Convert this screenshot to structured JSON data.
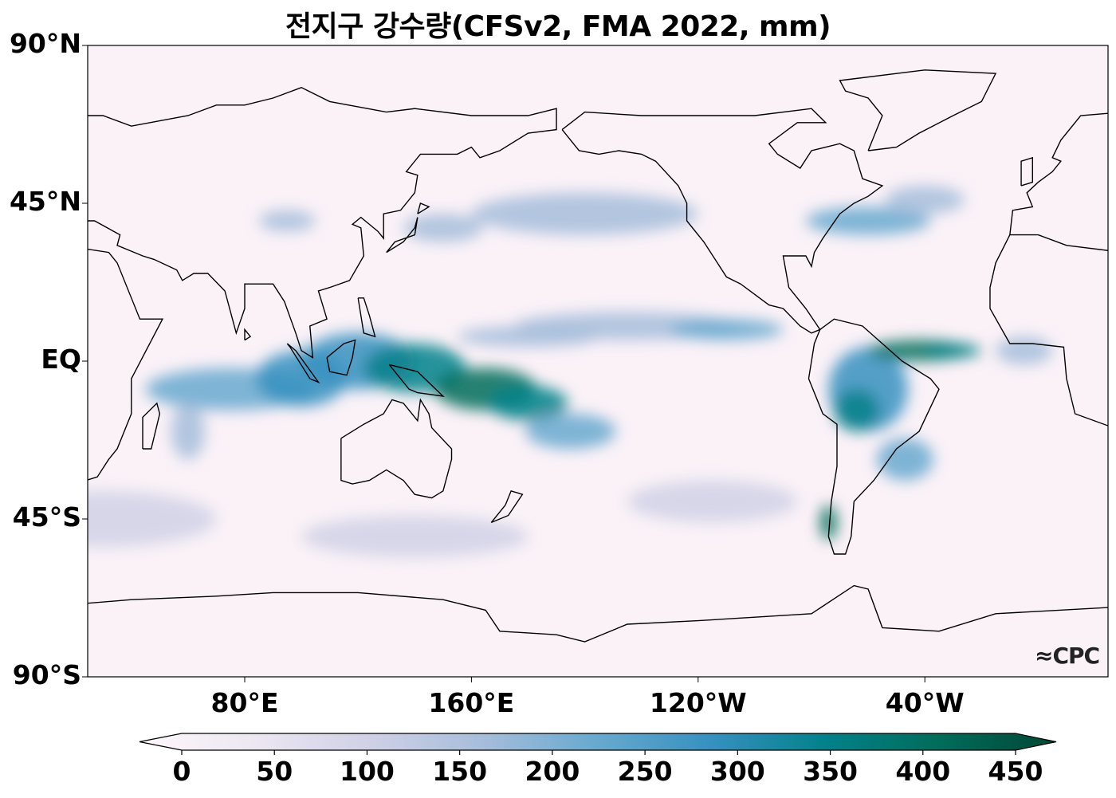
{
  "title": "전지구 강수량(CFSv2, FMA 2022, mm)",
  "map": {
    "projection": "PlateCarree, centered Pacific",
    "y_ticks": [
      {
        "lat": 90,
        "label": "90°N"
      },
      {
        "lat": 45,
        "label": "45°N"
      },
      {
        "lat": 0,
        "label": "EQ"
      },
      {
        "lat": -45,
        "label": "45°S"
      },
      {
        "lat": -90,
        "label": "90°S"
      }
    ],
    "x_ticks": [
      {
        "lon": 80,
        "label": "80°E"
      },
      {
        "lon": 160,
        "label": "160°E"
      },
      {
        "lon": 240,
        "label": "120°W"
      },
      {
        "lon": 320,
        "label": "40°W"
      }
    ],
    "logo": "CPC"
  },
  "colorbar": {
    "min": 0,
    "max": 450,
    "extend": "both",
    "ticks": [
      "0",
      "50",
      "100",
      "150",
      "200",
      "250",
      "300",
      "350",
      "400",
      "450"
    ],
    "colormap": [
      "#fff7fb",
      "#ece7f2",
      "#d0d1e6",
      "#a6bddb",
      "#67a9cf",
      "#3690c0",
      "#02818a",
      "#016c59",
      "#014636"
    ]
  }
}
